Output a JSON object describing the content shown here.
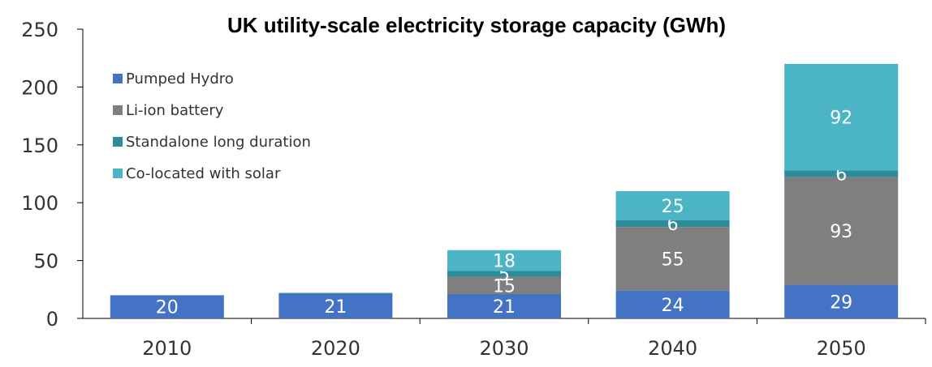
{
  "chart_data": {
    "type": "bar",
    "stacked": true,
    "title": "UK utility-scale electricity storage capacity (GWh)",
    "categories": [
      "2010",
      "2020",
      "2030",
      "2040",
      "2050"
    ],
    "ylim": [
      0,
      250
    ],
    "yticks": [
      "0",
      "50",
      "100",
      "150",
      "200",
      "250"
    ],
    "grid": false,
    "legend_position": "top-left",
    "series": [
      {
        "name": "Pumped Hydro",
        "color": "#4472C4",
        "values": [
          20,
          21,
          21,
          24,
          29
        ],
        "labels": [
          "20",
          "21",
          "21",
          "24",
          "29"
        ]
      },
      {
        "name": "Li-ion battery",
        "color": "#7F7F7F",
        "values": [
          0,
          0,
          15,
          55,
          93
        ],
        "labels": [
          "",
          "",
          "15",
          "55",
          "93"
        ]
      },
      {
        "name": "Standalone long duration",
        "color": "#2E8B99",
        "values": [
          0,
          1,
          5,
          6,
          6
        ],
        "labels": [
          "",
          "",
          "5",
          "6",
          "6"
        ]
      },
      {
        "name": "Co-located with solar",
        "color": "#4BB5C6",
        "values": [
          0,
          0,
          18,
          25,
          92
        ],
        "labels": [
          "",
          "",
          "18",
          "25",
          "92"
        ]
      }
    ]
  }
}
